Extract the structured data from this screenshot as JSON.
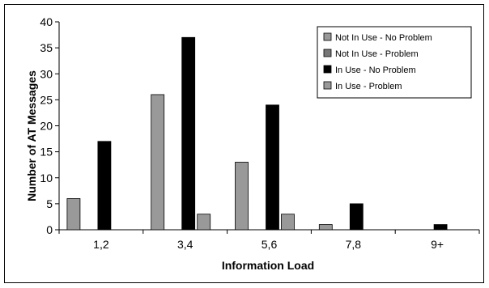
{
  "chart_data": {
    "type": "bar",
    "title": "",
    "xlabel": "Information Load",
    "ylabel": "Number of AT Messages",
    "categories": [
      "1,2",
      "3,4",
      "5,6",
      "7,8",
      "9+"
    ],
    "ylim": [
      0,
      40
    ],
    "yticks": [
      0,
      5,
      10,
      15,
      20,
      25,
      30,
      35,
      40
    ],
    "grid": false,
    "legend_position": "top-right",
    "series": [
      {
        "name": "Not In Use - No Problem",
        "color": "#999999",
        "values": [
          6,
          26,
          13,
          1,
          0
        ]
      },
      {
        "name": "Not In Use - Problem",
        "color": "#777777",
        "values": [
          0,
          0,
          0,
          0,
          0
        ]
      },
      {
        "name": "In Use - No Problem",
        "color": "#000000",
        "values": [
          17,
          37,
          24,
          5,
          1
        ]
      },
      {
        "name": "In Use - Problem",
        "color": "#999999",
        "values": [
          0,
          3,
          3,
          0,
          0
        ]
      }
    ]
  }
}
